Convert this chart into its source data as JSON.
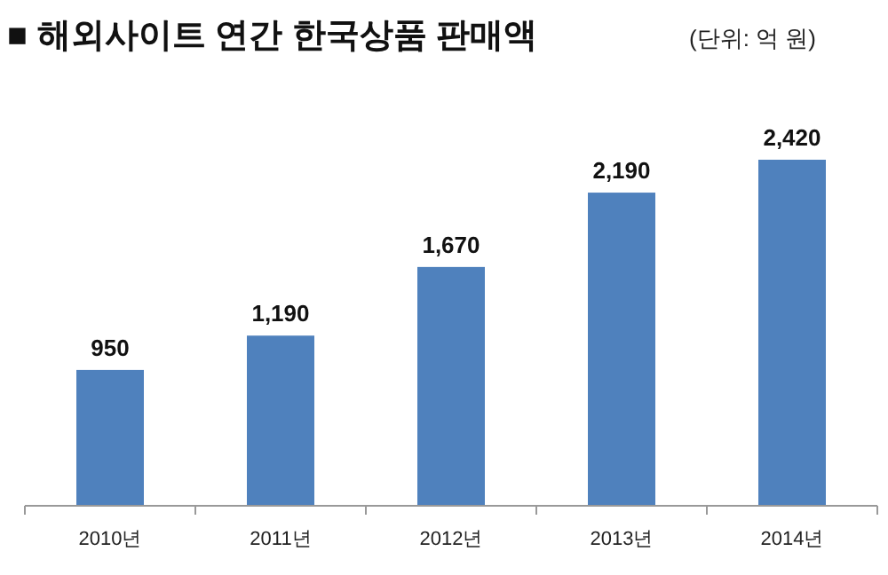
{
  "chart_data": {
    "type": "bar",
    "title": "■ 해외사이트 연간 한국상품 판매액",
    "subtitle": "(단위: 억 원)",
    "categories": [
      "2010년",
      "2011년",
      "2012년",
      "2013년",
      "2014년"
    ],
    "values": [
      950,
      1190,
      1670,
      2190,
      2420
    ],
    "value_labels": [
      "950",
      "1,190",
      "1,670",
      "2,190",
      "2,420"
    ],
    "color": "#4f81bd"
  }
}
